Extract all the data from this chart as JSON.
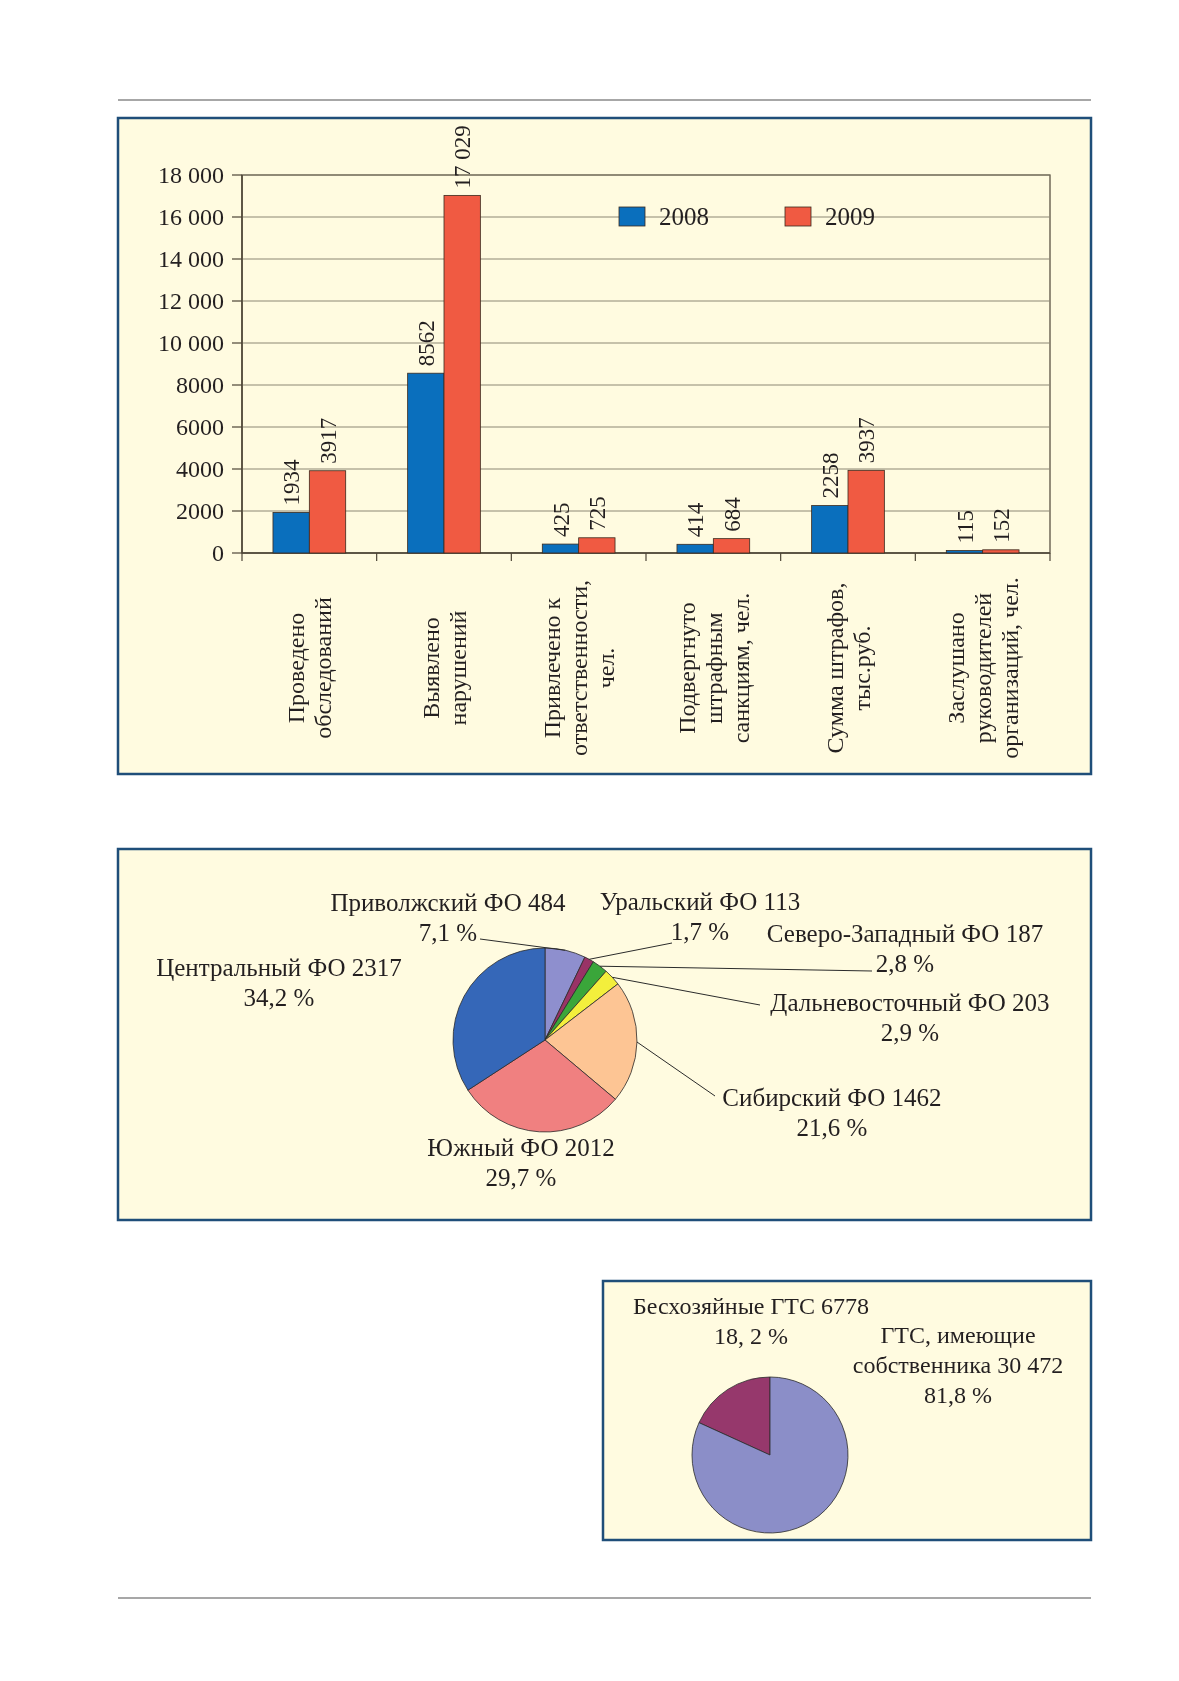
{
  "chart_data": [
    {
      "type": "bar",
      "categories": [
        "Проведено\nобследований",
        "Выявлено\nнарушений",
        "Привлечено к\nответственности,\nчел.",
        "Подвергнуто\nштрафным\nсанкциям, чел.",
        "Сумма штрафов,\nтыс.руб.",
        "Заслушано\nруководителей\nорганизаций, чел."
      ],
      "series": [
        {
          "name": "2008",
          "color": "#0a6fbd",
          "values": [
            1934,
            8562,
            425,
            414,
            2258,
            115
          ],
          "value_labels": [
            "1934",
            "8562",
            "425",
            "414",
            "2258",
            "115"
          ]
        },
        {
          "name": "2009",
          "color": "#f05a42",
          "values": [
            3917,
            17029,
            725,
            684,
            3937,
            152
          ],
          "value_labels": [
            "3917",
            "17 029",
            "725",
            "684",
            "3937",
            "152"
          ]
        }
      ],
      "ylim": [
        0,
        18000
      ],
      "yticks": [
        0,
        2000,
        4000,
        6000,
        8000,
        {
          "value": 10000,
          "label": "10 000"
        },
        {
          "value": 12000,
          "label": "12 000"
        },
        {
          "value": 14000,
          "label": "14 000"
        },
        {
          "value": 16000,
          "label": "16 000"
        },
        {
          "value": 18000,
          "label": "18 000"
        }
      ],
      "grid": "y",
      "legend": "top right"
    },
    {
      "type": "pie",
      "categories": [
        "Приволжский ФО",
        "Уральский ФО",
        "Северо-Западный ФО",
        "Дальневосточный ФО",
        "Сибирский ФО",
        "Южный ФО",
        "Центральный ФО"
      ],
      "values": [
        484,
        113,
        187,
        203,
        1462,
        2012,
        2317
      ],
      "value_labels": [
        "484\n7,1 %",
        "113\n1,7 %",
        "187\n2,8 %",
        "203\n2,9 %",
        "1462\n21,6 %",
        "2012\n29,7 %",
        "2317\n34,2 %"
      ],
      "colors": [
        "#8e8fce",
        "#993366",
        "#3aa63a",
        "#f3ef3c",
        "#fdc594",
        "#f08080",
        "#3567b8"
      ]
    },
    {
      "type": "pie",
      "categories": [
        "Бесхозяйные ГТС",
        "ГТС, имеющие\nсобственника"
      ],
      "values": [
        6778,
        30472
      ],
      "value_labels": [
        "6778\n18, 2 %",
        "30 472\n81,8 %"
      ],
      "colors": [
        "#96386c",
        "#8b8ec8"
      ]
    }
  ]
}
